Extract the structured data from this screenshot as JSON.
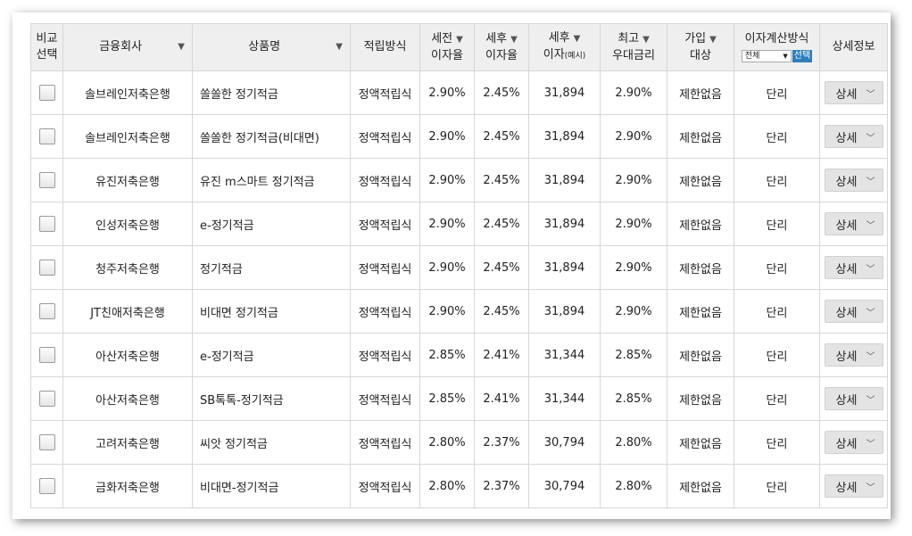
{
  "header": {
    "compare": [
      "비교",
      "선택"
    ],
    "company": "금융회사",
    "product": "상품명",
    "method": "적립방식",
    "pretax": [
      "세전",
      "이자율"
    ],
    "posttax": [
      "세후",
      "이자율"
    ],
    "posttax_interest": [
      "세후",
      "이자",
      "(예시)"
    ],
    "max_rate": [
      "최고",
      "우대금리"
    ],
    "join": [
      "가입",
      "대상"
    ],
    "calc": "이자계산방식",
    "calc_select": "전체",
    "calc_button": "선택",
    "details": "상세정보",
    "sort_arrow": "▼"
  },
  "detail_label": "상세",
  "rows": [
    {
      "company": "솔브레인저축은행",
      "product": "쏠쏠한 정기적금",
      "method": "정액적립식",
      "pretax": "2.90%",
      "posttax": "2.45%",
      "interest": "31,894",
      "max": "2.90%",
      "join": "제한없음",
      "calc": "단리"
    },
    {
      "company": "솔브레인저축은행",
      "product": "쏠쏠한 정기적금(비대면)",
      "method": "정액적립식",
      "pretax": "2.90%",
      "posttax": "2.45%",
      "interest": "31,894",
      "max": "2.90%",
      "join": "제한없음",
      "calc": "단리"
    },
    {
      "company": "유진저축은행",
      "product": "유진 m스마트 정기적금",
      "method": "정액적립식",
      "pretax": "2.90%",
      "posttax": "2.45%",
      "interest": "31,894",
      "max": "2.90%",
      "join": "제한없음",
      "calc": "단리"
    },
    {
      "company": "인성저축은행",
      "product": "e-정기적금",
      "method": "정액적립식",
      "pretax": "2.90%",
      "posttax": "2.45%",
      "interest": "31,894",
      "max": "2.90%",
      "join": "제한없음",
      "calc": "단리"
    },
    {
      "company": "청주저축은행",
      "product": "정기적금",
      "method": "정액적립식",
      "pretax": "2.90%",
      "posttax": "2.45%",
      "interest": "31,894",
      "max": "2.90%",
      "join": "제한없음",
      "calc": "단리"
    },
    {
      "company": "JT친애저축은행",
      "product": "비대면 정기적금",
      "method": "정액적립식",
      "pretax": "2.90%",
      "posttax": "2.45%",
      "interest": "31,894",
      "max": "2.90%",
      "join": "제한없음",
      "calc": "단리"
    },
    {
      "company": "아산저축은행",
      "product": "e-정기적금",
      "method": "정액적립식",
      "pretax": "2.85%",
      "posttax": "2.41%",
      "interest": "31,344",
      "max": "2.85%",
      "join": "제한없음",
      "calc": "단리"
    },
    {
      "company": "아산저축은행",
      "product": "SB톡톡-정기적금",
      "method": "정액적립식",
      "pretax": "2.85%",
      "posttax": "2.41%",
      "interest": "31,344",
      "max": "2.85%",
      "join": "제한없음",
      "calc": "단리"
    },
    {
      "company": "고려저축은행",
      "product": "씨앗 정기적금",
      "method": "정액적립식",
      "pretax": "2.80%",
      "posttax": "2.37%",
      "interest": "30,794",
      "max": "2.80%",
      "join": "제한없음",
      "calc": "단리"
    },
    {
      "company": "금화저축은행",
      "product": "비대면-정기적금",
      "method": "정액적립식",
      "pretax": "2.80%",
      "posttax": "2.37%",
      "interest": "30,794",
      "max": "2.80%",
      "join": "제한없음",
      "calc": "단리"
    }
  ]
}
